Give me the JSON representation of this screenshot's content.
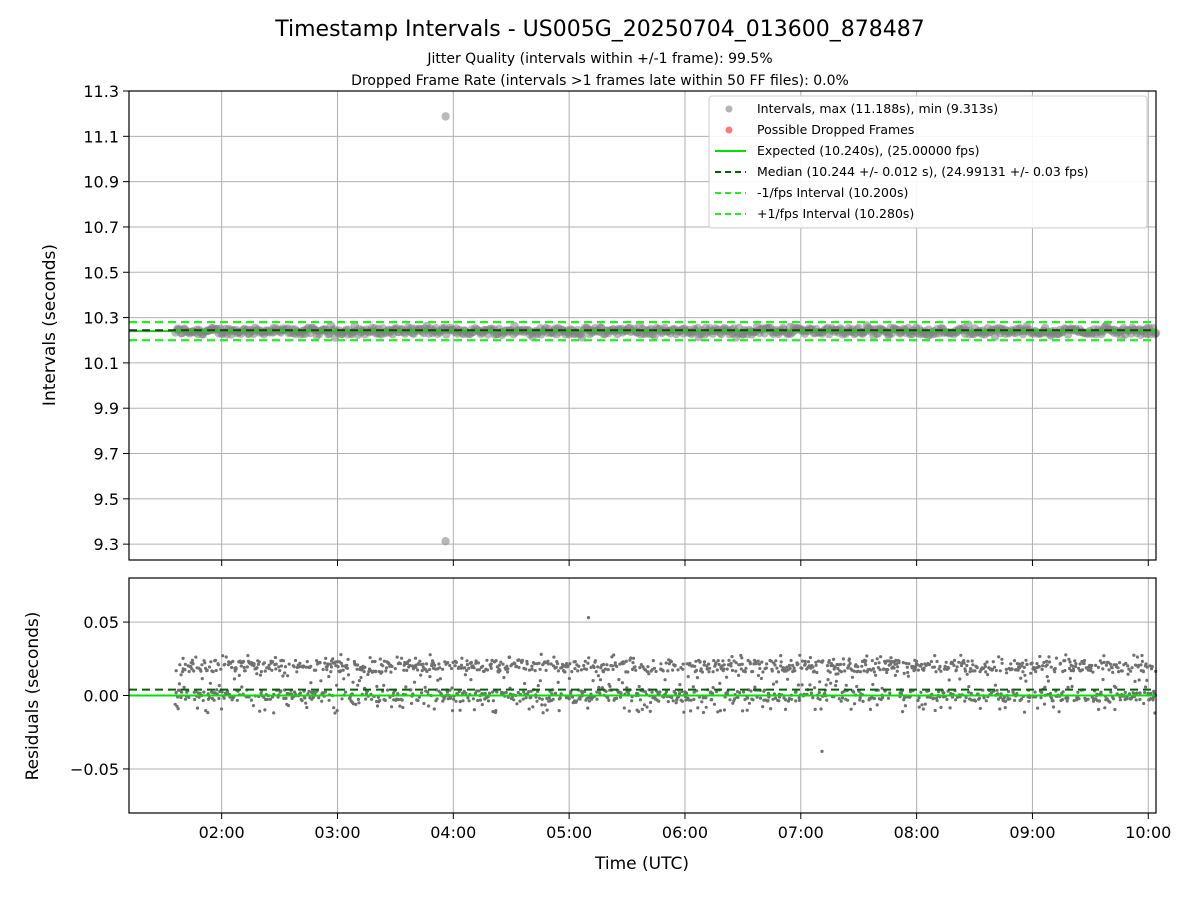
{
  "figure": {
    "title": "Timestamp Intervals - US005G_20250704_013600_878487",
    "subtitle_line1": "Jitter Quality (intervals within +/-1 frame): 99.5%",
    "subtitle_line2": "Dropped Frame Rate (intervals >1 frames late within 50 FF files): 0.0%"
  },
  "colors": {
    "scatter": "#808080",
    "dropped": "#ff4040",
    "expected": "#00e000",
    "median": "#006400",
    "fps_band": "#22ee22",
    "grid": "#b0b0b0"
  },
  "chart_data": [
    {
      "type": "scatter",
      "title": "",
      "xlabel": "",
      "ylabel": "Intervals (seconds)",
      "x_range": [
        "01:12",
        "10:04"
      ],
      "ylim": [
        9.23,
        11.3
      ],
      "yticks": [
        "11.3",
        "11.1",
        "10.9",
        "10.7",
        "10.5",
        "10.3",
        "10.1",
        "9.9",
        "9.7",
        "9.5",
        "9.3"
      ],
      "grid": true,
      "legend_position": "top-right",
      "legend": [
        "Intervals, max (11.188s), min (9.313s)",
        "Possible Dropped Frames",
        "Expected (10.240s), (25.00000 fps)",
        "Median (10.244 +/- 0.012 s), (24.99131 +/- 0.03 fps)",
        "-1/fps Interval (10.200s)",
        "+1/fps Interval (10.280s)"
      ],
      "reference_lines": {
        "expected": 10.24,
        "median": 10.244,
        "minus_1fps": 10.2,
        "plus_1fps": 10.28
      },
      "series": [
        {
          "name": "Intervals",
          "x_start": "01:36",
          "x_end": "10:04",
          "baseline": 10.24,
          "jitter": 0.03,
          "max": 11.188,
          "max_time": "03:56",
          "min": 9.313,
          "min_time": "03:56"
        }
      ]
    },
    {
      "type": "scatter",
      "title": "",
      "xlabel": "Time (UTC)",
      "ylabel": "Residuals (seconds)",
      "x_range": [
        "01:12",
        "10:04"
      ],
      "ylim": [
        -0.08,
        0.08
      ],
      "yticks": [
        "0.05",
        "0.00",
        "−0.05"
      ],
      "xticks": [
        "02:00",
        "03:00",
        "04:00",
        "05:00",
        "06:00",
        "07:00",
        "08:00",
        "09:00",
        "10:00"
      ],
      "grid": true,
      "reference_lines": {
        "expected": 0.0,
        "median": 0.004
      },
      "series": [
        {
          "name": "Residuals",
          "x_start": "01:36",
          "x_end": "10:04",
          "cluster_low": 0.0,
          "cluster_high": 0.02,
          "spread": 0.02,
          "max": 0.053,
          "min": -0.038
        }
      ]
    }
  ]
}
